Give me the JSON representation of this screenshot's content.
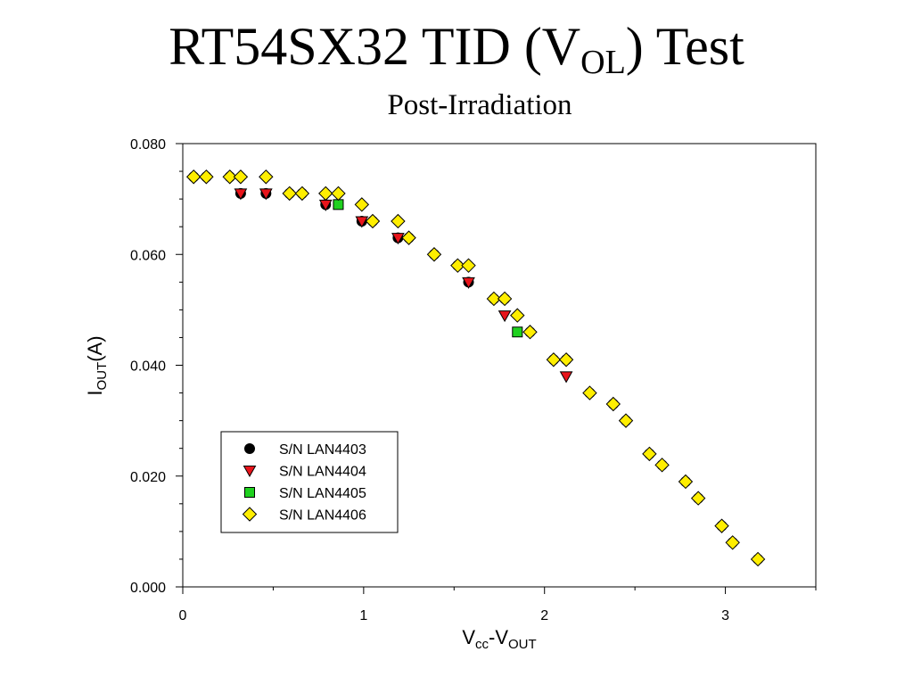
{
  "title": {
    "main": "RT54SX32 TID (V",
    "sub": "OL",
    "end": ") Test"
  },
  "subtitle": "Post-Irradiation",
  "chart_data": {
    "type": "scatter",
    "xlabel": {
      "main": "V",
      "sub1": "cc",
      "mid": "-V",
      "sub2": "OUT"
    },
    "ylabel": {
      "main": "I",
      "sub": "OUT",
      "end": "(A)"
    },
    "xlim": [
      0,
      3.5
    ],
    "ylim": [
      0,
      0.08
    ],
    "xticks": [
      0,
      1,
      2,
      3
    ],
    "xtick_labels": [
      "0",
      "1",
      "2",
      "3"
    ],
    "yticks": [
      0,
      0.02,
      0.04,
      0.06,
      0.08
    ],
    "ytick_labels": [
      "0.000",
      "0.020",
      "0.040",
      "0.060",
      "0.080"
    ],
    "grid": false,
    "legend_position": "bottom-left",
    "series": [
      {
        "name": "S/N LAN4403",
        "marker": "circle",
        "color": "#000000",
        "x": [
          0.06,
          0.13,
          0.26,
          0.32,
          0.46,
          0.59,
          0.66,
          0.79,
          0.99,
          1.05,
          1.19,
          1.25,
          1.39,
          1.52,
          1.58,
          1.72,
          1.78,
          1.92,
          2.05,
          2.12,
          2.25,
          2.38,
          2.45,
          2.58,
          2.65,
          2.78,
          2.85,
          2.98,
          3.04,
          3.18
        ],
        "y": [
          0.074,
          0.074,
          0.074,
          0.071,
          0.071,
          0.071,
          0.071,
          0.069,
          0.066,
          0.066,
          0.063,
          0.063,
          0.06,
          0.058,
          0.055,
          0.052,
          0.052,
          0.046,
          0.041,
          0.041,
          0.035,
          0.033,
          0.03,
          0.024,
          0.022,
          0.019,
          0.016,
          0.011,
          0.008,
          0.005
        ]
      },
      {
        "name": "S/N LAN4404",
        "marker": "triangle-down",
        "color": "#e8141b",
        "x": [
          0.32,
          0.46,
          0.79,
          0.99,
          1.19,
          1.58,
          1.78,
          2.12
        ],
        "y": [
          0.071,
          0.071,
          0.069,
          0.066,
          0.063,
          0.055,
          0.049,
          0.038
        ]
      },
      {
        "name": "S/N LAN4405",
        "marker": "square",
        "color": "#1fd11f",
        "x": [
          0.86,
          1.85
        ],
        "y": [
          0.069,
          0.046
        ]
      },
      {
        "name": "S/N LAN4406",
        "marker": "diamond",
        "color": "#ffee00",
        "x": [
          0.06,
          0.13,
          0.26,
          0.32,
          0.46,
          0.59,
          0.66,
          0.79,
          0.86,
          0.99,
          1.05,
          1.19,
          1.25,
          1.39,
          1.52,
          1.58,
          1.72,
          1.78,
          1.85,
          1.92,
          2.05,
          2.12,
          2.25,
          2.38,
          2.45,
          2.58,
          2.65,
          2.78,
          2.85,
          2.98,
          3.04,
          3.18
        ],
        "y": [
          0.074,
          0.074,
          0.074,
          0.074,
          0.074,
          0.071,
          0.071,
          0.071,
          0.071,
          0.069,
          0.066,
          0.066,
          0.063,
          0.06,
          0.058,
          0.058,
          0.052,
          0.052,
          0.049,
          0.046,
          0.041,
          0.041,
          0.035,
          0.033,
          0.03,
          0.024,
          0.022,
          0.019,
          0.016,
          0.011,
          0.008,
          0.005
        ]
      }
    ]
  }
}
